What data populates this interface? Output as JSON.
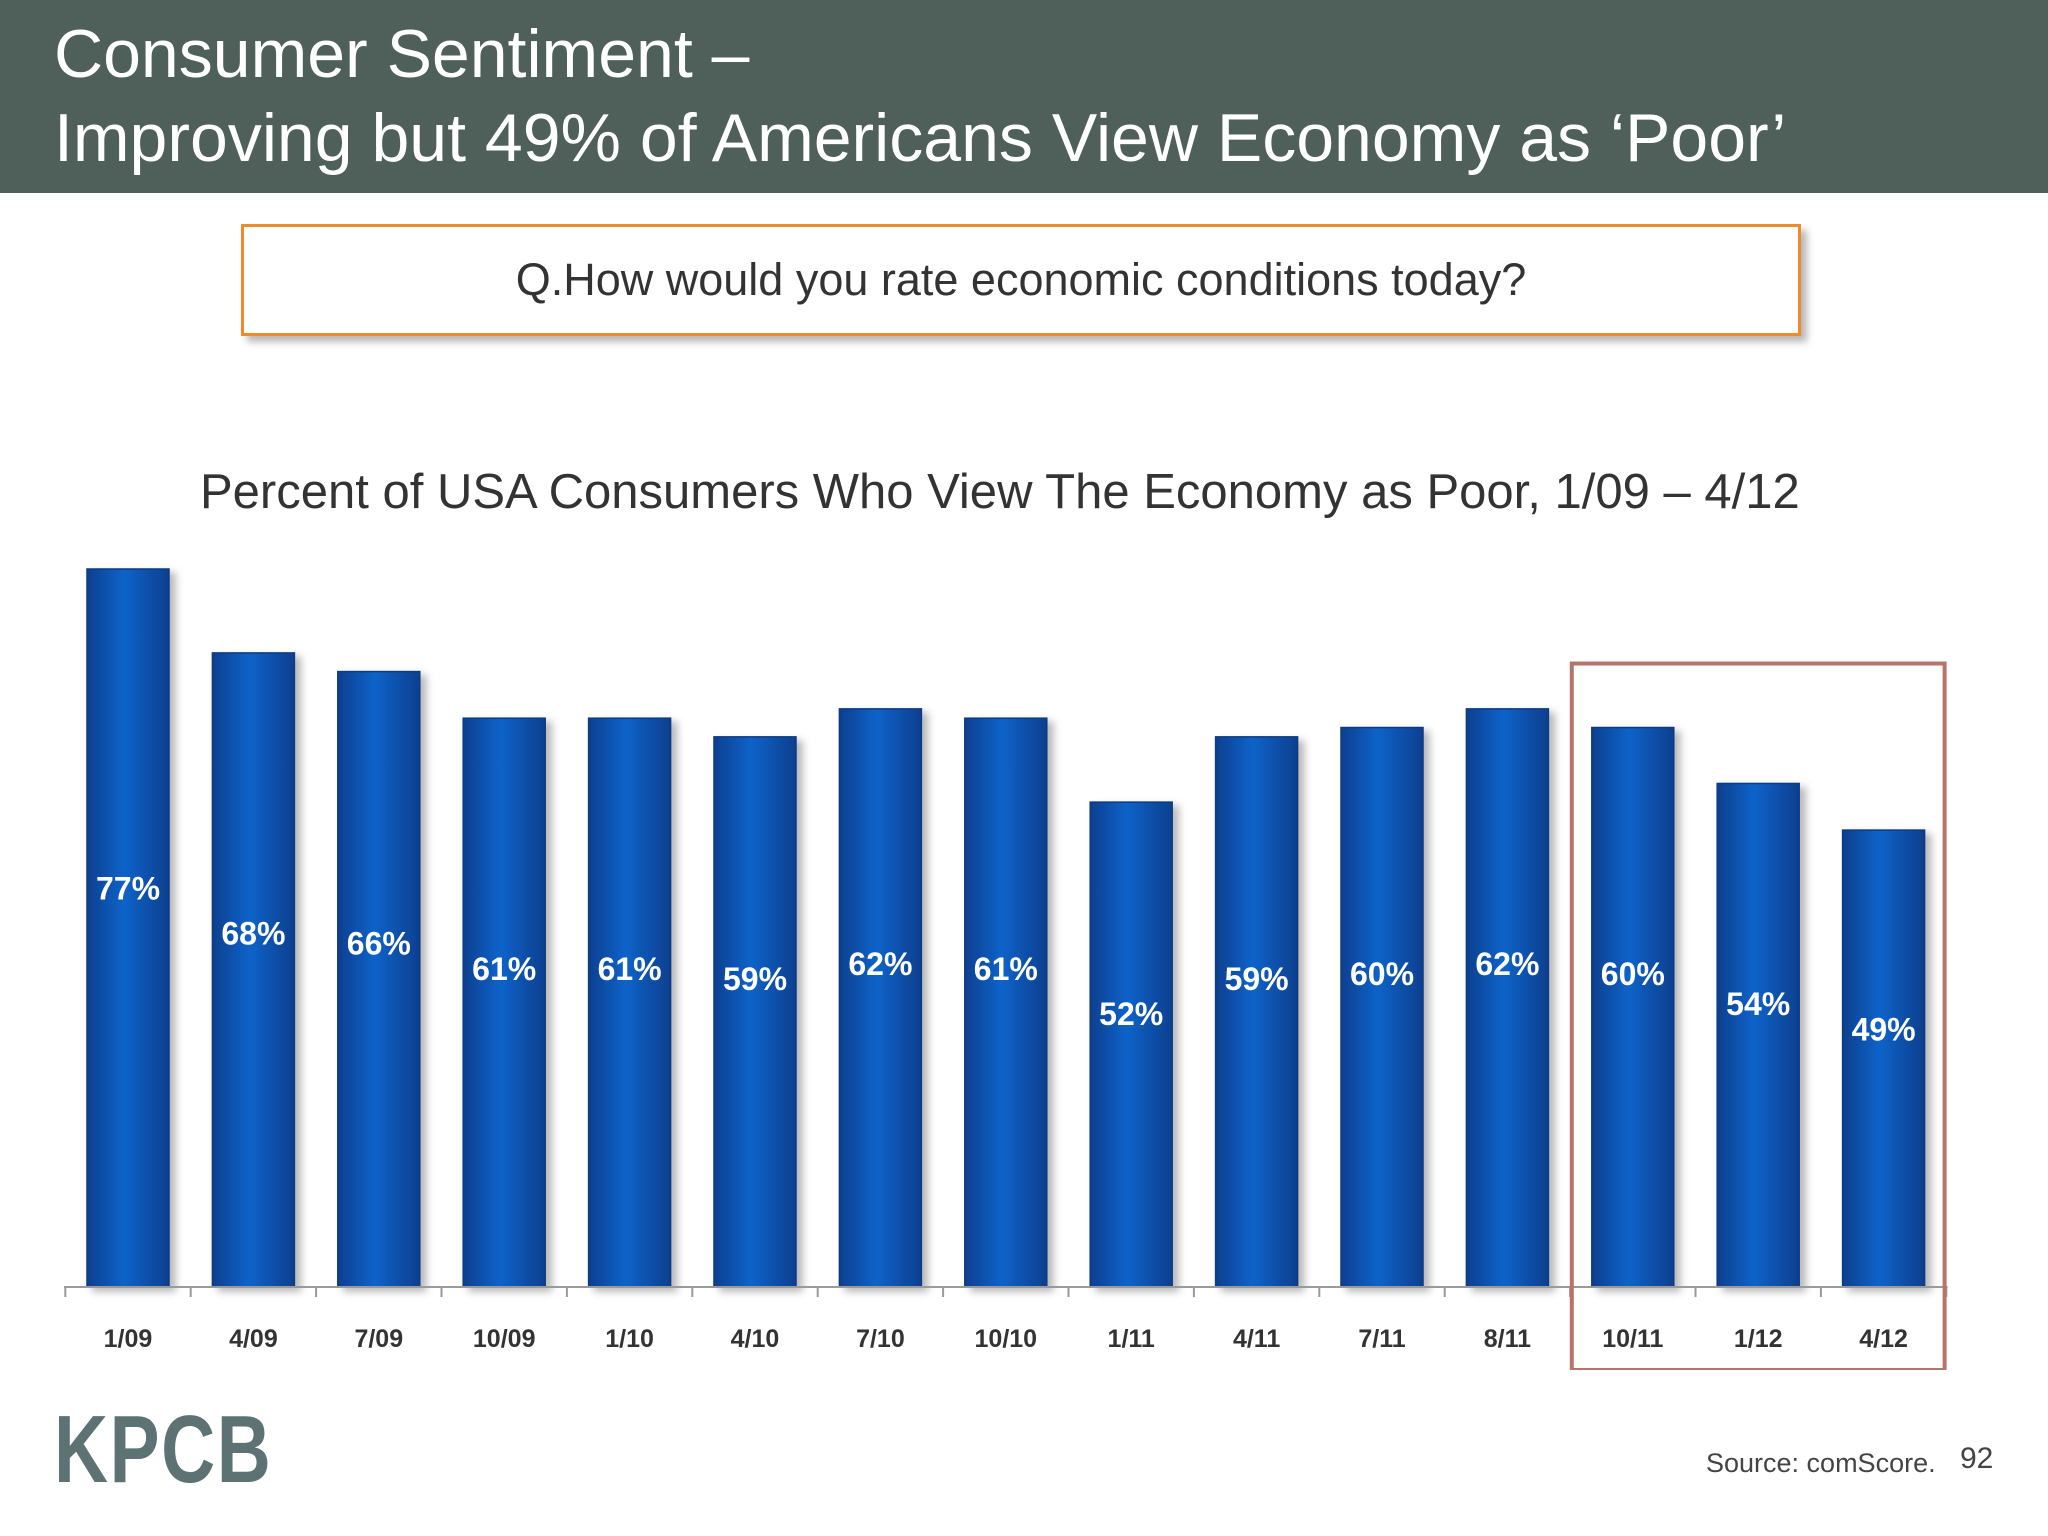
{
  "header": {
    "line1": "Consumer Sentiment –",
    "line2": "Improving but 49% of Americans View Economy as ‘Poor’"
  },
  "question": "Q.How would you rate economic conditions today?",
  "chart_data": {
    "type": "bar",
    "title": "Percent of USA Consumers Who View The Economy as Poor, 1/09 – 4/12",
    "xlabel": "",
    "ylabel": "",
    "categories": [
      "1/09",
      "4/09",
      "7/09",
      "10/09",
      "1/10",
      "4/10",
      "7/10",
      "10/10",
      "1/11",
      "4/11",
      "7/11",
      "8/11",
      "10/11",
      "1/12",
      "4/12"
    ],
    "values": [
      77,
      68,
      66,
      61,
      61,
      59,
      62,
      61,
      52,
      59,
      60,
      62,
      60,
      54,
      49
    ],
    "data_labels": [
      "77%",
      "68%",
      "66%",
      "61%",
      "61%",
      "59%",
      "62%",
      "61%",
      "52%",
      "59%",
      "60%",
      "62%",
      "60%",
      "54%",
      "49%"
    ],
    "ylim": [
      0,
      77
    ],
    "grid": false,
    "highlighted_categories": [
      "10/11",
      "1/12",
      "4/12"
    ],
    "bar_color": "#0b5bbd",
    "highlight_color": "#b87468"
  },
  "footer": {
    "logo": "KPCB",
    "source": "Source: comScore.",
    "page_number": "92"
  }
}
